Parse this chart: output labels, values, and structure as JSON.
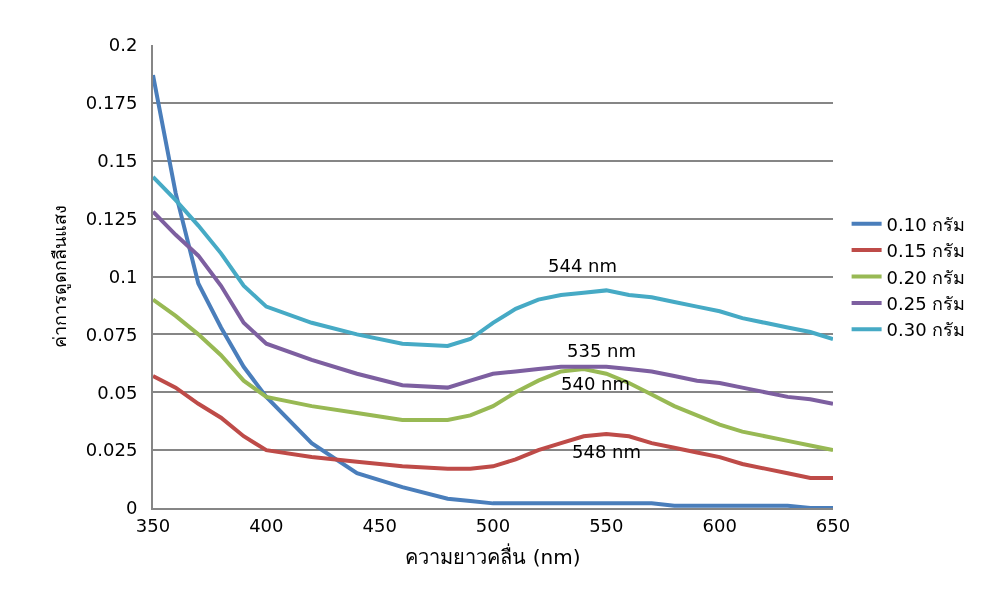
{
  "chart_data": {
    "type": "line",
    "xlabel": "ความยาวคลื่น (nm)",
    "ylabel": "ค่าการดูดกลืนแสง",
    "x": [
      350,
      360,
      370,
      380,
      390,
      400,
      420,
      440,
      460,
      480,
      490,
      500,
      510,
      520,
      530,
      540,
      550,
      560,
      570,
      580,
      590,
      600,
      610,
      620,
      630,
      640,
      650
    ],
    "xlim": [
      350,
      650
    ],
    "xticks": [
      350,
      400,
      450,
      500,
      550,
      600,
      650
    ],
    "ylim": [
      0,
      0.2
    ],
    "yticks": [
      0,
      0.025,
      0.05,
      0.075,
      0.1,
      0.125,
      0.15,
      0.175,
      0.2
    ],
    "grid": "y",
    "legend": "right",
    "marker": "none",
    "line_style": "solid",
    "series": [
      {
        "name": "0.10 กรัม",
        "color": "#4a7ebb",
        "values": [
          0.187,
          0.136,
          0.097,
          0.078,
          0.061,
          0.048,
          0.028,
          0.015,
          0.009,
          0.004,
          0.003,
          0.002,
          0.002,
          0.002,
          0.002,
          0.002,
          0.002,
          0.002,
          0.002,
          0.001,
          0.001,
          0.001,
          0.001,
          0.001,
          0.001,
          0.0,
          0.0
        ]
      },
      {
        "name": "0.15 กรัม",
        "color": "#be4b48",
        "values": [
          0.057,
          0.052,
          0.045,
          0.039,
          0.031,
          0.025,
          0.022,
          0.02,
          0.018,
          0.017,
          0.017,
          0.018,
          0.021,
          0.025,
          0.028,
          0.031,
          0.032,
          0.031,
          0.028,
          0.026,
          0.024,
          0.022,
          0.019,
          0.017,
          0.015,
          0.013,
          0.013
        ]
      },
      {
        "name": "0.20 กรัม",
        "color": "#98b954",
        "values": [
          0.09,
          0.083,
          0.075,
          0.066,
          0.055,
          0.048,
          0.044,
          0.041,
          0.038,
          0.038,
          0.04,
          0.044,
          0.05,
          0.055,
          0.059,
          0.06,
          0.058,
          0.054,
          0.049,
          0.044,
          0.04,
          0.036,
          0.033,
          0.031,
          0.029,
          0.027,
          0.025
        ]
      },
      {
        "name": "0.25 กรัม",
        "color": "#7d5fa0",
        "values": [
          0.128,
          0.118,
          0.109,
          0.096,
          0.08,
          0.071,
          0.064,
          0.058,
          0.053,
          0.052,
          0.055,
          0.058,
          0.059,
          0.06,
          0.061,
          0.061,
          0.061,
          0.06,
          0.059,
          0.057,
          0.055,
          0.054,
          0.052,
          0.05,
          0.048,
          0.047,
          0.045
        ]
      },
      {
        "name": "0.30 กรัม",
        "color": "#46aac5",
        "values": [
          0.143,
          0.133,
          0.122,
          0.11,
          0.096,
          0.087,
          0.08,
          0.075,
          0.071,
          0.07,
          0.073,
          0.08,
          0.086,
          0.09,
          0.092,
          0.093,
          0.094,
          0.092,
          0.091,
          0.089,
          0.087,
          0.085,
          0.082,
          0.08,
          0.078,
          0.076,
          0.073
        ]
      }
    ],
    "annotations": [
      "544 nm",
      "535 nm",
      "540 nm",
      "548 nm"
    ]
  }
}
